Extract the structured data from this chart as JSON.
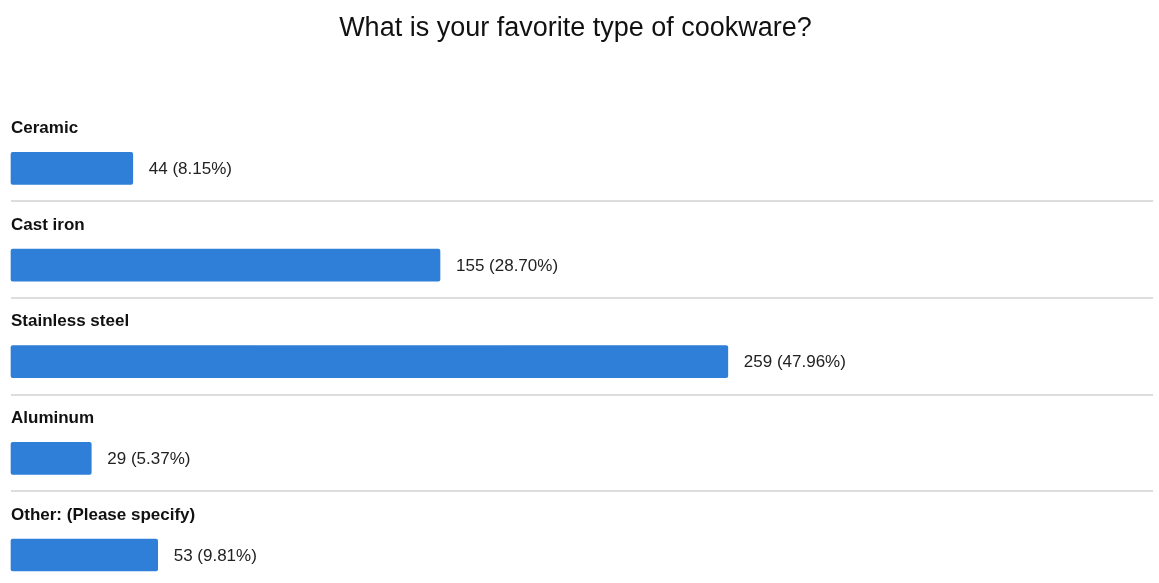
{
  "chart_data": {
    "type": "bar",
    "orientation": "horizontal",
    "title": "What is your favorite type of cookware?",
    "categories": [
      "Ceramic",
      "Cast iron",
      "Stainless steel",
      "Aluminum",
      "Other: (Please specify)"
    ],
    "values": [
      44,
      155,
      259,
      29,
      53
    ],
    "value_labels": [
      "44 (8.15%)",
      "155 (28.70%)",
      "259 (47.96%)",
      "29 (5.37%)",
      "53 (9.81%)"
    ],
    "color": "#2f7ed8",
    "grid": "y",
    "tick_labels": "y",
    "legend": false
  }
}
